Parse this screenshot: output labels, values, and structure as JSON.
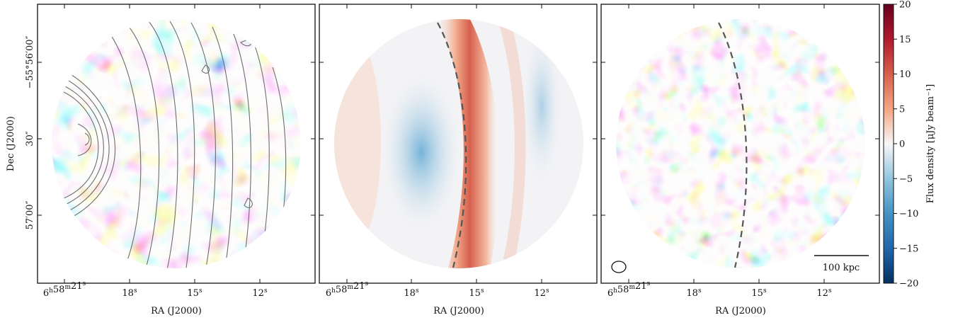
{
  "chart_data": [
    {
      "type": "heatmap",
      "panel": "left",
      "xlabel": "RA (J2000)",
      "ylabel": "Dec (J2000)",
      "x_ticks": [
        {
          "base": "6",
          "sup1": "h",
          "mid": "58",
          "sup2": "m",
          "tail": "21",
          "sup3": "s"
        },
        {
          "base": "18",
          "sup1": "s"
        },
        {
          "base": "15",
          "sup1": "s"
        },
        {
          "base": "12",
          "sup1": "s"
        }
      ],
      "y_ticks": [
        "−55°56′00″",
        "30″",
        "57′00″"
      ],
      "overlay": "contours",
      "colormap": "RdBu_r"
    },
    {
      "type": "heatmap",
      "panel": "middle",
      "xlabel": "RA (J2000)",
      "x_ticks": [
        {
          "base": "6",
          "sup1": "h",
          "mid": "58",
          "sup2": "m",
          "tail": "21",
          "sup3": "s"
        },
        {
          "base": "18",
          "sup1": "s"
        },
        {
          "base": "15",
          "sup1": "s"
        },
        {
          "base": "12",
          "sup1": "s"
        }
      ],
      "overlay": "dashed-arc",
      "colormap": "RdBu_r"
    },
    {
      "type": "heatmap",
      "panel": "right",
      "xlabel": "RA (J2000)",
      "x_ticks": [
        {
          "base": "6",
          "sup1": "h",
          "mid": "58",
          "sup2": "m",
          "tail": "21",
          "sup3": "s"
        },
        {
          "base": "18",
          "sup1": "s"
        },
        {
          "base": "15",
          "sup1": "s"
        },
        {
          "base": "12",
          "sup1": "s"
        }
      ],
      "overlay": "dashed-arc",
      "scalebar_label": "100 kpc",
      "beam": "ellipse",
      "colormap": "RdBu_r"
    }
  ],
  "colorbar": {
    "label": "Flux density [μJy beam⁻¹]",
    "ticks": [
      20,
      15,
      10,
      5,
      0,
      -5,
      -10,
      -15,
      -20
    ],
    "tick_labels": [
      "20",
      "15",
      "10",
      "5",
      "0",
      "−5",
      "−10",
      "−15",
      "−20"
    ],
    "range": [
      -20,
      20
    ],
    "colors": {
      "max": "#67001f",
      "high": "#d6604d",
      "mid": "#f7f7f7",
      "low": "#4393c3",
      "min": "#053061"
    }
  }
}
